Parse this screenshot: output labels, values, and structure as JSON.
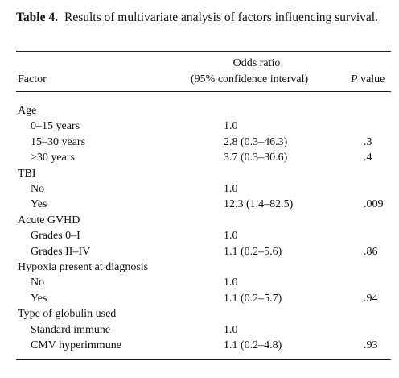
{
  "table": {
    "label": "Table 4.",
    "title": "Results of multivariate analysis of factors influencing survival.",
    "header": {
      "factor": "Factor",
      "odds_ratio": [
        "Odds ratio",
        "(95% confidence interval)"
      ],
      "p_symbol": "P",
      "p_word": "value"
    },
    "groups": [
      {
        "label": "Age",
        "rows": [
          {
            "label": "0–15 years",
            "odds": "1.0"
          },
          {
            "label": "15–30 years",
            "odds": "2.8 (0.3–46.3)",
            "p": ".3"
          },
          {
            "label": ">30 years",
            "odds": "3.7 (0.3–30.6)",
            "p": ".4"
          }
        ]
      },
      {
        "label": "TBI",
        "rows": [
          {
            "label": "No",
            "odds": "1.0"
          },
          {
            "label": "Yes",
            "odds": "12.3 (1.4–82.5)",
            "p": ".009"
          }
        ]
      },
      {
        "label": "Acute GVHD",
        "rows": [
          {
            "label": "Grades 0–I",
            "odds": "1.0"
          },
          {
            "label": "Grades II–IV",
            "odds": "1.1 (0.2–5.6)",
            "p": ".86"
          }
        ]
      },
      {
        "label": "Hypoxia present at diagnosis",
        "rows": [
          {
            "label": "No",
            "odds": "1.0"
          },
          {
            "label": "Yes",
            "odds": "1.1 (0.2–5.7)",
            "p": ".94"
          }
        ]
      },
      {
        "label": "Type of globulin used",
        "rows": [
          {
            "label": "Standard immune",
            "odds": "1.0"
          },
          {
            "label": "CMV hyperimmune",
            "odds": "1.1 (0.2–4.8)",
            "p": ".93"
          }
        ]
      }
    ]
  }
}
